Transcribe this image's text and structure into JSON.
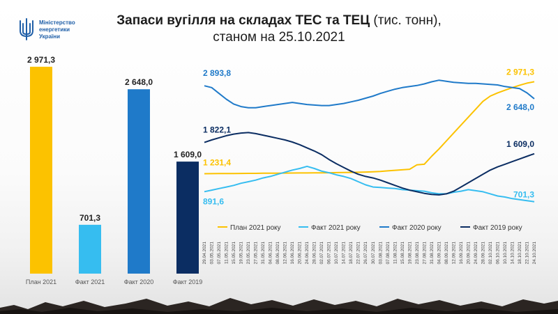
{
  "header": {
    "ministry_lines": [
      "Міністерство",
      "енергетики",
      "України"
    ],
    "title_main": "Запаси вугілля на складах ТЕС та ТЕЦ",
    "title_unit": "(тис. тонн),",
    "title_sub": "станом на 25.10.2021"
  },
  "colors": {
    "plan2021": "#fcc200",
    "fact2021": "#36bdf0",
    "fact2020": "#1f7ac9",
    "fact2019": "#0b2d62"
  },
  "chart_data": [
    {
      "type": "bar",
      "categories": [
        "План 2021",
        "Факт 2021",
        "Факт 2020",
        "Факт 2019"
      ],
      "values": [
        2971.3,
        701.3,
        2648.0,
        1609.0
      ],
      "value_labels": [
        "2 971,3",
        "701,3",
        "2 648,0",
        "1 609,0"
      ],
      "ylim": [
        0,
        3000
      ]
    },
    {
      "type": "line",
      "x": [
        "29.04.2021",
        "03.05.2021",
        "07.05.2021",
        "11.05.2021",
        "15.05.2021",
        "19.05.2021",
        "23.05.2021",
        "27.05.2021",
        "31.05.2021",
        "04.06.2021",
        "08.06.2021",
        "12.06.2021",
        "16.06.2021",
        "20.06.2021",
        "24.06.2021",
        "28.06.2021",
        "02.07.2021",
        "06.07.2021",
        "10.07.2021",
        "14.07.2021",
        "18.07.2021",
        "22.07.2021",
        "26.07.2021",
        "30.07.2021",
        "03.08.2021",
        "07.08.2021",
        "11.08.2021",
        "15.08.2021",
        "19.08.2021",
        "23.08.2021",
        "27.08.2021",
        "31.08.2021",
        "04.09.2021",
        "08.09.2021",
        "12.09.2021",
        "16.09.2021",
        "20.09.2021",
        "24.09.2021",
        "28.09.2021",
        "02.10.2021",
        "06.10.2021",
        "10.10.2021",
        "14.10.2021",
        "18.10.2021",
        "22.10.2021",
        "24.10.2021"
      ],
      "ylim": [
        500,
        3200
      ],
      "series": [
        {
          "name": "План 2021 року",
          "color_key": "plan2021",
          "start_label": "1 231,4",
          "end_label": "2 971,3",
          "values": [
            1231.4,
            1232,
            1233,
            1234,
            1235,
            1236,
            1237,
            1238,
            1240,
            1241,
            1242,
            1243,
            1244,
            1245,
            1246,
            1247,
            1248,
            1250,
            1252,
            1254,
            1256,
            1258,
            1262,
            1268,
            1275,
            1285,
            1295,
            1305,
            1315,
            1400,
            1410,
            1560,
            1700,
            1850,
            2000,
            2150,
            2300,
            2450,
            2600,
            2700,
            2760,
            2810,
            2860,
            2905,
            2945,
            2971.3
          ]
        },
        {
          "name": "Факт 2021 року",
          "color_key": "fact2021",
          "start_label": "891,6",
          "end_label": "701,3",
          "values": [
            891.6,
            920,
            950,
            980,
            1010,
            1050,
            1080,
            1110,
            1150,
            1180,
            1220,
            1260,
            1300,
            1330,
            1370,
            1330,
            1280,
            1250,
            1210,
            1180,
            1140,
            1080,
            1020,
            980,
            970,
            960,
            950,
            930,
            920,
            910,
            900,
            870,
            850,
            850,
            880,
            900,
            930,
            910,
            890,
            850,
            810,
            790,
            760,
            740,
            720,
            701.3
          ]
        },
        {
          "name": "Факт 2020 року",
          "color_key": "fact2020",
          "start_label": "2 893,8",
          "end_label": "2 648,0",
          "values": [
            2893.8,
            2860,
            2750,
            2640,
            2550,
            2500,
            2480,
            2480,
            2500,
            2520,
            2540,
            2560,
            2580,
            2560,
            2540,
            2530,
            2520,
            2520,
            2540,
            2560,
            2590,
            2620,
            2660,
            2700,
            2750,
            2790,
            2830,
            2860,
            2880,
            2900,
            2930,
            2970,
            3000,
            2980,
            2960,
            2950,
            2940,
            2940,
            2930,
            2920,
            2910,
            2880,
            2860,
            2840,
            2760,
            2648.0
          ]
        },
        {
          "name": "Факт 2019 року",
          "color_key": "fact2019",
          "start_label": "1 822,1",
          "end_label": "1 609,0",
          "values": [
            1822.1,
            1870,
            1910,
            1950,
            1980,
            2000,
            2010,
            1990,
            1960,
            1930,
            1900,
            1870,
            1830,
            1780,
            1720,
            1660,
            1590,
            1500,
            1420,
            1350,
            1280,
            1220,
            1180,
            1150,
            1110,
            1060,
            1010,
            960,
            920,
            890,
            860,
            840,
            830,
            850,
            900,
            980,
            1060,
            1140,
            1220,
            1300,
            1360,
            1410,
            1460,
            1510,
            1560,
            1609.0
          ]
        }
      ]
    }
  ]
}
